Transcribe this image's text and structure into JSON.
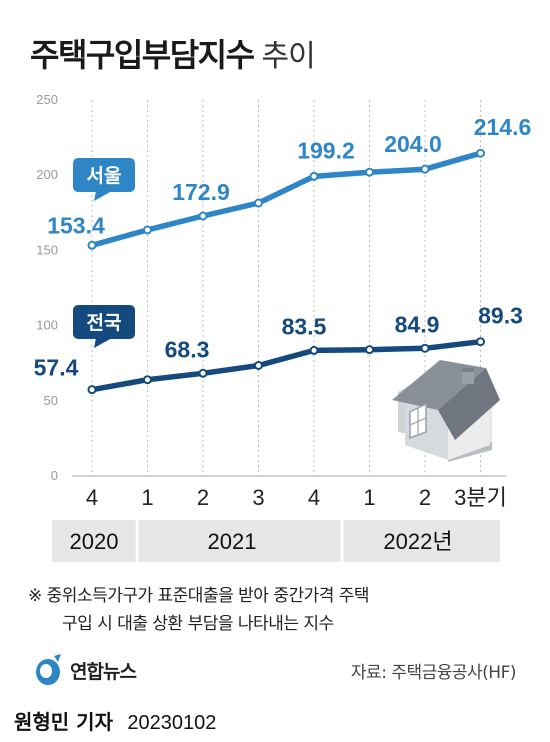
{
  "title": "주택구입부담지수",
  "subtitle": "추이",
  "note_line1": "※ 중위소득가구가 표준대출을 받아 중간가격 주택",
  "note_line2": "구입 시 대출 상환 부담을 나타내는 지수",
  "logo_text": "연합뉴스",
  "source": "자료: 주택금융공사(HF)",
  "byline_name": "원형민 기자",
  "byline_date": "20230102",
  "colors": {
    "seoul": "#2e86c6",
    "national": "#154a7e",
    "year_band": "#e6e6e6"
  },
  "chart_data": {
    "type": "line",
    "x": [
      "4",
      "1",
      "2",
      "3",
      "4",
      "1",
      "2",
      "3분기"
    ],
    "years": [
      "2020",
      "2021",
      "2022년"
    ],
    "series": [
      {
        "name": "서울",
        "values": [
          153.4,
          163.6,
          172.9,
          181.5,
          199.2,
          202.0,
          204.0,
          214.6
        ],
        "labels": [
          "153.4",
          "",
          "172.9",
          "",
          "199.2",
          "",
          "204.0",
          "214.6"
        ]
      },
      {
        "name": "전국",
        "values": [
          57.4,
          64.0,
          68.3,
          73.5,
          83.5,
          84.0,
          84.9,
          89.3
        ],
        "labels": [
          "57.4",
          "",
          "68.3",
          "",
          "83.5",
          "",
          "84.9",
          "89.3"
        ]
      }
    ],
    "yticks": [
      0,
      50,
      100,
      150,
      200,
      250
    ],
    "ylim": [
      0,
      250
    ],
    "grid": "dotted vertical"
  }
}
